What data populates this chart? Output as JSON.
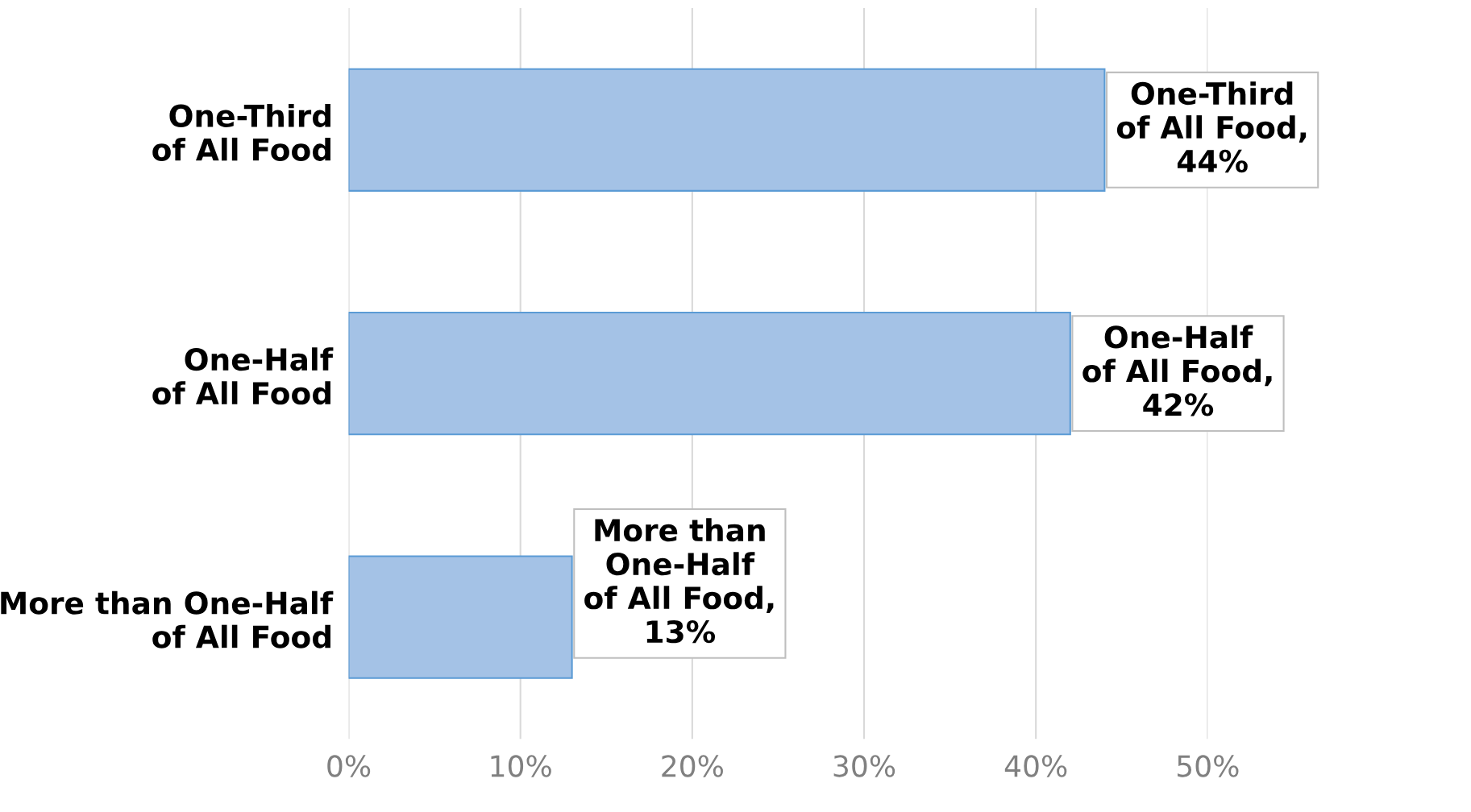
{
  "chart_data": {
    "type": "bar",
    "orientation": "horizontal",
    "categories": [
      "One-Third\nof All Food",
      "One-Half\nof All Food",
      "More than One-Half\nof All Food"
    ],
    "values": [
      44,
      42,
      13
    ],
    "color": "#a4c2e6",
    "value_labels": [
      "One-Third\nof All Food,\n44%",
      "One-Half\nof All Food,\n42%",
      "More than\nOne-Half\nof All Food,\n13%"
    ],
    "xlim": [
      0,
      50
    ],
    "xticks": [
      {
        "value": 0,
        "label": "0%"
      },
      {
        "value": 10,
        "label": "10%"
      },
      {
        "value": 20,
        "label": "20%"
      },
      {
        "value": 30,
        "label": "30%"
      },
      {
        "value": 40,
        "label": "40%"
      },
      {
        "value": 50,
        "label": "50%"
      }
    ],
    "grid": "x"
  }
}
